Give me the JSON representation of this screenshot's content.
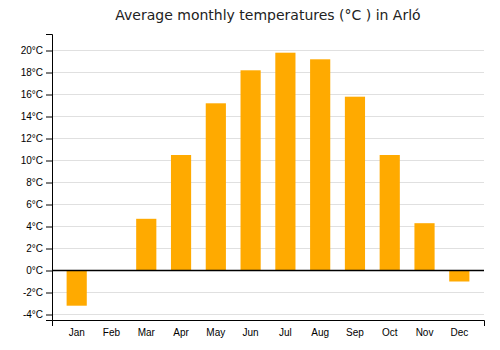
{
  "chart_data": {
    "type": "bar",
    "title": "Average monthly temperatures (°C ) in Arló",
    "categories": [
      "Jan",
      "Feb",
      "Mar",
      "Apr",
      "May",
      "Jun",
      "Jul",
      "Aug",
      "Sep",
      "Oct",
      "Nov",
      "Dec"
    ],
    "values": [
      -3.2,
      0,
      4.7,
      10.5,
      15.2,
      18.2,
      19.8,
      19.2,
      15.8,
      10.5,
      4.3,
      -1.0
    ],
    "color": "#FFAA00",
    "ylim": [
      -4.5,
      21.5
    ],
    "yticks": [
      {
        "value": -4,
        "label": "-4°C"
      },
      {
        "value": -2,
        "label": "-2°C"
      },
      {
        "value": 0,
        "label": "0°C"
      },
      {
        "value": 2,
        "label": "2°C"
      },
      {
        "value": 4,
        "label": "4°C"
      },
      {
        "value": 6,
        "label": "6°C"
      },
      {
        "value": 8,
        "label": "8°C"
      },
      {
        "value": 10,
        "label": "10°C"
      },
      {
        "value": 12,
        "label": "12°C"
      },
      {
        "value": 14,
        "label": "14°C"
      },
      {
        "value": 16,
        "label": "16°C"
      },
      {
        "value": 18,
        "label": "18°C"
      },
      {
        "value": 20,
        "label": "20°C"
      }
    ],
    "grid": true
  }
}
